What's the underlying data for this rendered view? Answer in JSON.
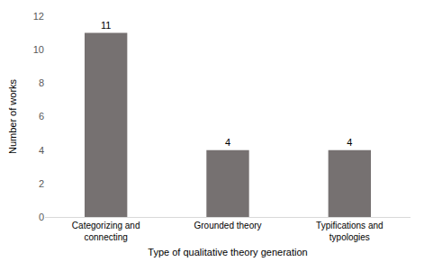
{
  "chart_data": {
    "type": "bar",
    "x_label": "Type of qualitative theory generation",
    "y_label": "Number of works",
    "categories": [
      "Categorizing and connecting",
      "Grounded theory",
      "Typifications and typologies"
    ],
    "values": [
      11,
      4,
      4
    ],
    "color": "#767171",
    "ylim": [
      0,
      12
    ],
    "yticks": [
      0,
      2,
      4,
      6,
      8,
      10,
      12
    ],
    "grid": false,
    "data_labels": true
  }
}
